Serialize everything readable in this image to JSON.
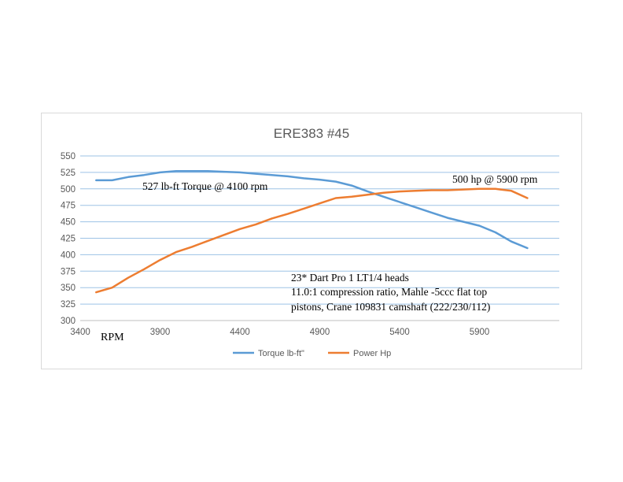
{
  "chart_data": {
    "type": "line",
    "title": "ERE383 #45",
    "xlabel": "RPM",
    "ylabel": "",
    "xlim": [
      3400,
      6400
    ],
    "ylim": [
      300,
      550
    ],
    "x_ticks": [
      3400,
      3900,
      4400,
      4900,
      5400,
      5900
    ],
    "y_ticks": [
      300,
      325,
      350,
      375,
      400,
      425,
      450,
      475,
      500,
      525,
      550
    ],
    "grid": true,
    "legend_position": "bottom",
    "x": [
      3500,
      3600,
      3700,
      3800,
      3900,
      4000,
      4100,
      4200,
      4300,
      4400,
      4500,
      4600,
      4700,
      4800,
      4900,
      5000,
      5100,
      5200,
      5300,
      5400,
      5500,
      5600,
      5700,
      5800,
      5900,
      6000,
      6100,
      6200
    ],
    "series": [
      {
        "name": "Torque lb-ft\"",
        "color": "#5b9bd5",
        "values": [
          513,
          513,
          518,
          521,
          525,
          527,
          527,
          527,
          526,
          525,
          523,
          521,
          519,
          516,
          514,
          511,
          505,
          496,
          488,
          480,
          472,
          464,
          456,
          450,
          444,
          434,
          420,
          410
        ]
      },
      {
        "name": "Power Hp",
        "color": "#ed7d31",
        "values": [
          343,
          350,
          365,
          378,
          392,
          404,
          412,
          421,
          430,
          439,
          446,
          455,
          462,
          470,
          478,
          486,
          488,
          491,
          494,
          496,
          497,
          498,
          498,
          499,
          500,
          500,
          497,
          486
        ]
      }
    ],
    "annotations": [
      "527 lb-ft Torque @ 4100 rpm",
      "500 hp @ 5900 rpm",
      "23* Dart Pro 1 LT1/4 heads",
      "11.0:1 compression ratio, Mahle -5ccc flat top",
      "pistons, Crane 109831 camshaft (222/230/112)"
    ]
  }
}
